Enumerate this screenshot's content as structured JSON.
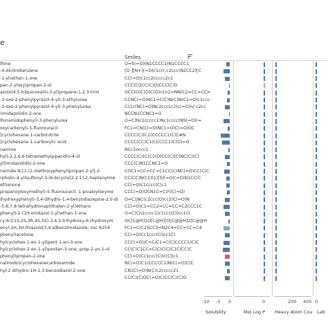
{
  "page": {
    "title": "e"
  },
  "header": {
    "smiles_label": "Smiles"
  },
  "rows": [
    {
      "name": "lfone",
      "smiles": "O=S(=O)(N1CCCC1)N1CCCC1",
      "sol": -2.5,
      "logp_color": "#4e79a7",
      "heavy": "#4e79a7"
    },
    {
      "name": "-4-dinitrobenzene",
      "smiles": "[O-][N+](=O)c1cc(-c2ccc(N2CC2)[C",
      "sol": -4,
      "logp_color": "#4e79a7",
      "heavy": "#4e79a7"
    },
    {
      "name": "-1-yl)ethan-1-one",
      "smiles": "CC(=O)c1cc2ccccc2c1",
      "sol": -3,
      "logp_color": "#4e79a7",
      "heavy": "#4e79a7"
    },
    {
      "name": "pan-2-yloxy)propan-2-ol",
      "smiles": "CCC(COCC(C)O)CCC(C)O",
      "sol": -0.5,
      "logp_color": "#f28e8e",
      "heavy": "#4e79a7"
    },
    {
      "name": "azolo[4,5-b]quinoxalin-3-yl)propane-1,2,3-triol",
      "smiles": "OCC(O)C(O)C(O)c1n2=NN(C2=CC=CC=C",
      "sol": -1.5,
      "logp_color": "#4e79a7",
      "heavy": "#4e79a7"
    },
    {
      "name": "-3-oxo-2-phenylpyrazol-4-yl)-3-ethylurea",
      "smiles": "CCNC(=O)NC1=C(C)N(C)N(C1=O)c1ccc",
      "sol": -2,
      "logp_color": "#4e79a7",
      "heavy": "#4e79a7"
    },
    {
      "name": "-3-oxo-2-phenylpyrazol-4-yl)-3-phenylurea",
      "smiles": "Cc1c(NC(=O)Nc2ccccc2)c(=O)n(-c2cc",
      "sol": -3,
      "logp_color": "#4e79a7",
      "heavy": "#4e79a7"
    },
    {
      "name": ")imidazolidin-2-one",
      "smiles": "NCCN1CCNC1=O",
      "sol": -0.5,
      "logp_color": "#4e79a7",
      "heavy": "#4e79a7"
    },
    {
      "name": "lfonamidophenyl)-3-phenylurea",
      "smiles": "O=C(Nc1ccccc1)Nc1cccc(NS(=O)(=",
      "sol": -4,
      "logp_color": "#4e79a7",
      "heavy": "#4e79a7"
    },
    {
      "name": "oxycarbonyl)-5-fluorouracil",
      "smiles": "FC1=CN(C(=O)NC1=O)C(=O)OC",
      "sol": -1.5,
      "logp_color": "#4e79a7",
      "heavy": "#4e79a7"
    },
    {
      "name": "]cyclohexane-1-carbonitrile",
      "smiles": "CCCC(C)(C1(CCCCC1)C)C#N",
      "sol": -6,
      "logp_color": "#4e79a7",
      "heavy": "#4e79a7"
    },
    {
      "name": "]cyclohexane-1-carboxylic acid",
      "smiles": "CCCC(CC)C1(CCCCC1)C(O)=O",
      "sol": -5,
      "logp_color": "#4e79a7",
      "heavy": "#4e79a7"
    },
    {
      "name": "namine",
      "smiles": "NCc1occc1",
      "sol": -1,
      "logp_color": "#4e79a7",
      "heavy": "#4e79a7"
    },
    {
      "name": "hyl)-2,2,6,6-tetramethylpiperidin-4-ol",
      "smiles": "CCCC(C)(C)C1(O)CC(C)(C)NC(C)(C)",
      "sol": -3,
      "logp_color": "#4e79a7",
      "heavy": "#4e79a7"
    },
    {
      "name": "yl)imidazolidin-2-one",
      "smiles": "CCC(C)N1CCNC1=O",
      "sol": -2,
      "logp_color": "#4e79a7",
      "heavy": "#4e79a7"
    },
    {
      "name": "namide N-[1-(2-methoxyphenyl)propan-2-yl]-2-",
      "smiles": "COC1=CC=CC=C1CC(C)NC(=O)CC(C)C",
      "sol": -3.5,
      "logp_color": "#4e79a7",
      "heavy": "#4e79a7"
    },
    {
      "name": "rpholin-4-yl)sulfonyl-3-(6-bicyclo[2.2.1]-2-heptenylme",
      "smiles": "CC(CC)N(CC01)[S](=O)(=O)N1CC(C",
      "sol": -2.5,
      "logp_color": "#4e79a7",
      "heavy": "#4e79a7"
    },
    {
      "name": "ethanone",
      "smiles": "CC(=O)c1cccc(C)c1",
      "sol": -2.5,
      "logp_color": "#4e79a7",
      "heavy": "#4e79a7"
    },
    {
      "name": "propanoyloxymethyl)-5-fluorouracil; 1-pivaloyloxyme",
      "smiles": "CCC(=O)OCN1C=C(F)C(=O)",
      "sol": -2,
      "logp_color": "#4e79a7",
      "heavy": "#4e79a7"
    },
    {
      "name": "ihydroxyphenyl)-3,4-dihydro-1,4-benzodiazepine-2,5-di",
      "smiles": "O=C1NC(c2ccc(O)cc2)C(=O)N",
      "sol": -3,
      "logp_color": "#4e79a7",
      "heavy": "#4e79a7"
    },
    {
      "name": "-5,6,7,8-tetrahydronaphthalen-2-yl)ethano",
      "smiles": "CC(=O)C1=CC2=CC=CC=C2CCC1C",
      "sol": -4,
      "logp_color": "#4e79a7",
      "heavy": "#4e79a7"
    },
    {
      "name": "phenyl)-2-(1H-imidazol-1-yl)ethan-1-one",
      "smiles": "O=C(Cn1ccnc1)c1ccc(Cl)cc1Cl",
      "sol": -3,
      "logp_color": "#4e79a7",
      "heavy": "#4e79a7"
    },
    {
      "name": "cy-6-[(1S,2S,3R,4S,5S)-3,4,5-trihydroxy-6-(hydroxym",
      "smiles": "OC[C@H]1O[C@H](O[C@@H]2[C@@H",
      "sol": -1,
      "logp_color": "#4e79a7",
      "heavy": "#4e79a7"
    },
    {
      "name": "enyl-1H,3H-thiazolo[3,4-a]benzimidazole; nsc 6254",
      "smiles": "FC1=C(C2SCC3=N2C4=CC=CC=C4",
      "sol": -4,
      "logp_color": "#4e79a7",
      "heavy": "#4e79a7"
    },
    {
      "name": "phenyl)acetone",
      "smiles": "CC(=O)Cc1ccc(Cl)cc1Cl",
      "sol": -3,
      "logp_color": "#4e79a7",
      "heavy": "#4e79a7"
    },
    {
      "name": "hylcyclohex-1-en-1-yl)pent-1-en-3-one",
      "smiles": "CCC(=O)/C=C/C1=C(C)CCCC1(C)C",
      "sol": -4,
      "logp_color": "#4e79a7",
      "heavy": "#4e79a7"
    },
    {
      "name": "hylcyclohex-2-en-1-yl)pentan-3-one; prop-2-yn-1-ol",
      "smiles": "CC(C)C1CC=C(C)C(C)C1C(CC)C",
      "sol": -4.5,
      "logp_color": "#4e79a7",
      "heavy": "#4e79a7"
    },
    {
      "name": "phenyl)propan-2-one",
      "smiles": "CC(=O)Cc1ccc(Cl)c(Cl)c1",
      "sol": -3,
      "logp_color": "#4e79a7",
      "heavy": "#4e79a7"
    },
    {
      "name": "nalimido)cyclohexanecarboxamide",
      "smiles": "NC(=O)C1(CCCCC1)N(C(=O)C(C",
      "sol": -3,
      "logp_color": "#4e79a7",
      "heavy": "#4e79a7"
    },
    {
      "name": "hyl-2-dihydro-1H-1,3-benzodiazol-2-one",
      "smiles": "CN1C(=O)N(C)c2ccccc21",
      "sol": -2,
      "logp_color": "#4e79a7",
      "heavy": "#4e79a7"
    },
    {
      "name": "",
      "smiles": "CC(C)(C)OC(=O)C(CC(C)(C)O",
      "sol": -3,
      "logp_color": "#4e79a7",
      "heavy": "#4e79a7"
    }
  ],
  "axes": {
    "solubility": {
      "label": "Solubility",
      "ticks": [
        "-10",
        "-5",
        "0"
      ]
    },
    "logp": {
      "label": "Mol Log P",
      "ticks": [
        "0"
      ]
    },
    "heavy": {
      "label": "Heavy Atom Cou",
      "ticks": [
        "200",
        "400"
      ]
    },
    "lab": {
      "label": "Lab",
      "ticks": [
        "0"
      ]
    }
  },
  "colors": {
    "bar": "#4e79a7",
    "highlight_red": "#e15759",
    "highlight_teal": "#76b7b2",
    "pink": "#f28e8e"
  }
}
